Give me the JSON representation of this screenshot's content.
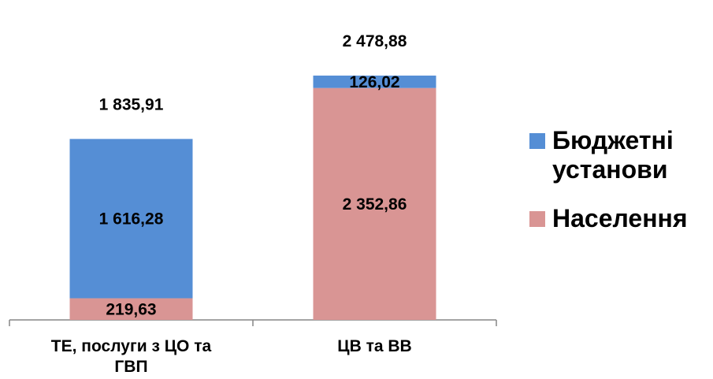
{
  "chart_data": {
    "type": "bar",
    "stacked": true,
    "categories": [
      "ТЕ, послуги з ЦО та ГВП",
      "ЦВ та ВВ"
    ],
    "series": [
      {
        "name": "Населення",
        "color": "#d99594",
        "values": [
          219.63,
          2352.86
        ],
        "labels": [
          "219,63",
          "2 352,86"
        ]
      },
      {
        "name": "Бюджетні установи",
        "color": "#558ed5",
        "values": [
          1616.28,
          126.02
        ],
        "labels": [
          "1 616,28",
          "126,02"
        ]
      }
    ],
    "totals": [
      1835.91,
      2478.88
    ],
    "total_labels": [
      "1 835,91",
      "2 478,88"
    ],
    "ylim": [
      0,
      2750
    ],
    "grid": false,
    "legend_position": "right"
  },
  "legend": [
    {
      "label": "Бюджетні установи",
      "color": "#558ed5"
    },
    {
      "label": "Населення",
      "color": "#d99594"
    }
  ]
}
